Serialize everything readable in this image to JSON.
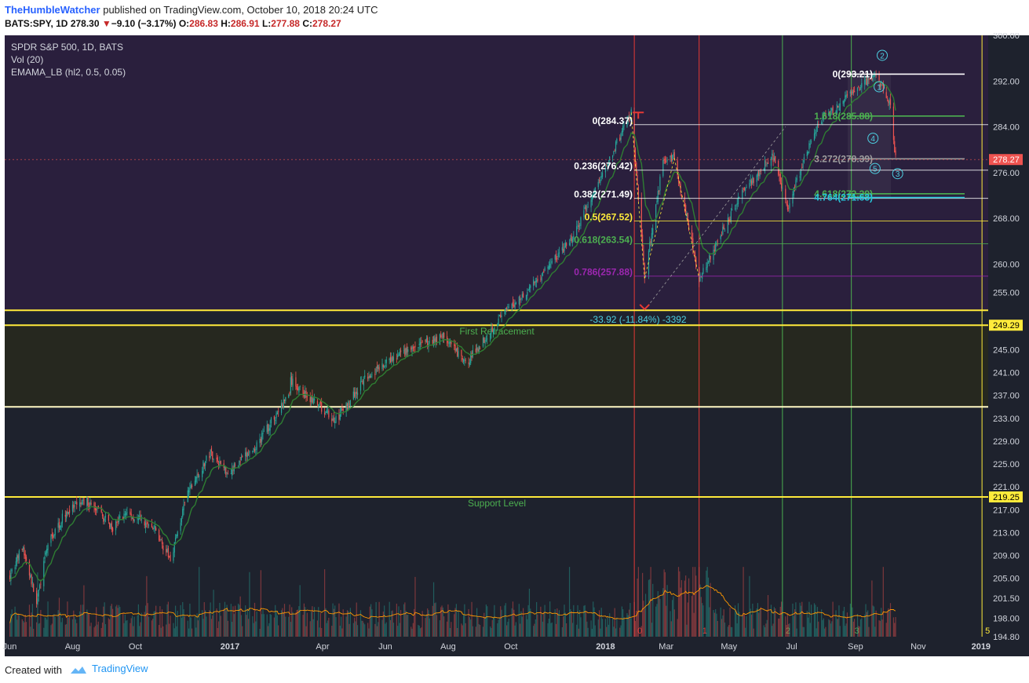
{
  "header": {
    "author": "TheHumbleWatcher",
    "published": "published on TradingView.com, October 10, 2018 20:24 UTC",
    "symbol": "BATS:SPY, 1D",
    "last": "278.30",
    "change_arrow": "▼",
    "change": "−9.10 (−3.17%)",
    "o_label": "O:",
    "o_val": "286.83",
    "h_label": "H:",
    "h_val": "286.91",
    "l_label": "L:",
    "l_val": "277.88",
    "c_label": "C:",
    "c_val": "278.27"
  },
  "legend": {
    "line1": "SPDR S&P 500, 1D, BATS",
    "line2": "Vol (20)",
    "line3": "EMAMA_LB (hl2, 0.5, 0.05)"
  },
  "footer": {
    "created_with": "Created with",
    "brand": "TradingView"
  },
  "colors": {
    "background": "#1e222d",
    "purple_zone": "#2a1f3d",
    "yellow_zone": "#26281f",
    "up": "#26a69a",
    "down": "#ef5350",
    "yellow": "#ffeb3b",
    "green": "#4caf50",
    "cyan": "#4dd0e1",
    "white": "#ffffff",
    "purple": "#9c27b0"
  },
  "chart_data": {
    "type": "candlestick",
    "symbol": "SPY",
    "interval": "1D",
    "ylim": [
      194.8,
      300.0
    ],
    "y_ticks": [
      "300.00",
      "292.00",
      "284.00",
      "276.00",
      "268.00",
      "260.00",
      "255.00",
      "249.29",
      "245.00",
      "241.00",
      "237.00",
      "233.00",
      "229.00",
      "225.00",
      "221.00",
      "219.25",
      "217.00",
      "213.00",
      "209.00",
      "205.00",
      "201.50",
      "198.00",
      "194.80"
    ],
    "x_ticks": [
      "Jun",
      "Aug",
      "Oct",
      "2017",
      "Apr",
      "Jun",
      "Aug",
      "Oct",
      "2018",
      "Mar",
      "May",
      "Jul",
      "Sep",
      "Nov",
      "2019"
    ],
    "last_price_tag": "278.27",
    "price_tags": [
      {
        "value": 249.29,
        "text": "249.29"
      },
      {
        "value": 219.25,
        "text": "219.25"
      }
    ],
    "price_path": [
      {
        "date": "2016-06-01",
        "value": 205.5
      },
      {
        "date": "2016-06-13",
        "value": 210.5
      },
      {
        "date": "2016-06-27",
        "value": 201.0
      },
      {
        "date": "2016-07-08",
        "value": 211.0
      },
      {
        "date": "2016-07-25",
        "value": 216.5
      },
      {
        "date": "2016-08-15",
        "value": 218.5
      },
      {
        "date": "2016-09-09",
        "value": 214.0
      },
      {
        "date": "2016-09-22",
        "value": 216.5
      },
      {
        "date": "2016-10-20",
        "value": 213.5
      },
      {
        "date": "2016-11-04",
        "value": 208.3
      },
      {
        "date": "2016-11-21",
        "value": 220.0
      },
      {
        "date": "2016-12-13",
        "value": 227.0
      },
      {
        "date": "2016-12-30",
        "value": 223.5
      },
      {
        "date": "2017-01-26",
        "value": 228.0
      },
      {
        "date": "2017-02-28",
        "value": 237.5
      },
      {
        "date": "2017-03-01",
        "value": 239.5
      },
      {
        "date": "2017-04-13",
        "value": 232.5
      },
      {
        "date": "2017-05-15",
        "value": 240.5
      },
      {
        "date": "2017-06-19",
        "value": 244.5
      },
      {
        "date": "2017-07-27",
        "value": 247.5
      },
      {
        "date": "2017-08-18",
        "value": 242.5
      },
      {
        "date": "2017-09-20",
        "value": 250.5
      },
      {
        "date": "2017-10-23",
        "value": 256.5
      },
      {
        "date": "2017-11-30",
        "value": 264.5
      },
      {
        "date": "2018-01-26",
        "value": 286.5
      },
      {
        "date": "2018-02-08",
        "value": 257.5
      },
      {
        "date": "2018-02-26",
        "value": 278.0
      },
      {
        "date": "2018-03-09",
        "value": 278.5
      },
      {
        "date": "2018-04-02",
        "value": 257.5
      },
      {
        "date": "2018-05-14",
        "value": 272.5
      },
      {
        "date": "2018-06-12",
        "value": 279.0
      },
      {
        "date": "2018-06-27",
        "value": 270.0
      },
      {
        "date": "2018-07-25",
        "value": 284.0
      },
      {
        "date": "2018-08-29",
        "value": 290.0
      },
      {
        "date": "2018-09-21",
        "value": 293.2
      },
      {
        "date": "2018-10-05",
        "value": 287.5
      },
      {
        "date": "2018-10-10",
        "value": 278.27
      }
    ],
    "horizontal_levels": [
      {
        "value": 251.9,
        "label": "",
        "color": "#ffeb3b"
      },
      {
        "value": 249.29,
        "label": "First Retracement",
        "color": "#ffeb3b"
      },
      {
        "value": 235.0,
        "label": "",
        "color": "#fff9c4"
      },
      {
        "value": 219.25,
        "label": "Support Level",
        "color": "#ffeb3b"
      }
    ],
    "fib_retracement": [
      {
        "level": "0",
        "value": 284.37,
        "text": "0(284.37)",
        "color": "#ffffff"
      },
      {
        "level": "0.236",
        "value": 276.42,
        "text": "0.236(276.42)",
        "color": "#ffffff"
      },
      {
        "level": "0.382",
        "value": 271.49,
        "text": "0.382(271.49)",
        "color": "#ffffff"
      },
      {
        "level": "0.5",
        "value": 267.52,
        "text": "0.5(267.52)",
        "color": "#ffeb3b"
      },
      {
        "level": "0.618",
        "value": 263.54,
        "text": "0.618(263.54)",
        "color": "#4caf50"
      },
      {
        "level": "0.786",
        "value": 257.88,
        "text": "0.786(257.88)",
        "color": "#9c27b0"
      }
    ],
    "fib_extension": [
      {
        "value": 293.21,
        "text": "0(293.21)",
        "color": "#ffffff"
      },
      {
        "value": 285.88,
        "text": "1.618(285.88)",
        "color": "#4caf50"
      },
      {
        "value": 278.39,
        "text": "3.272(278.39)",
        "color": "#9e9e9e"
      },
      {
        "value": 272.29,
        "text": "4.618(272.29)",
        "color": "#4caf50"
      },
      {
        "value": 271.63,
        "text": "4.764(271.63)",
        "color": "#26c6da"
      }
    ],
    "measure_label": "-33.92 (-11.84%) -3392",
    "elliott_wave_labels": [
      "1",
      "2",
      "3",
      "4",
      "5"
    ],
    "cycle_labels": [
      "0",
      "1",
      "2",
      "3",
      "5"
    ],
    "series": [
      {
        "name": "Vol (20)"
      },
      {
        "name": "EMAMA_LB (hl2, 0.5, 0.05)"
      }
    ]
  }
}
